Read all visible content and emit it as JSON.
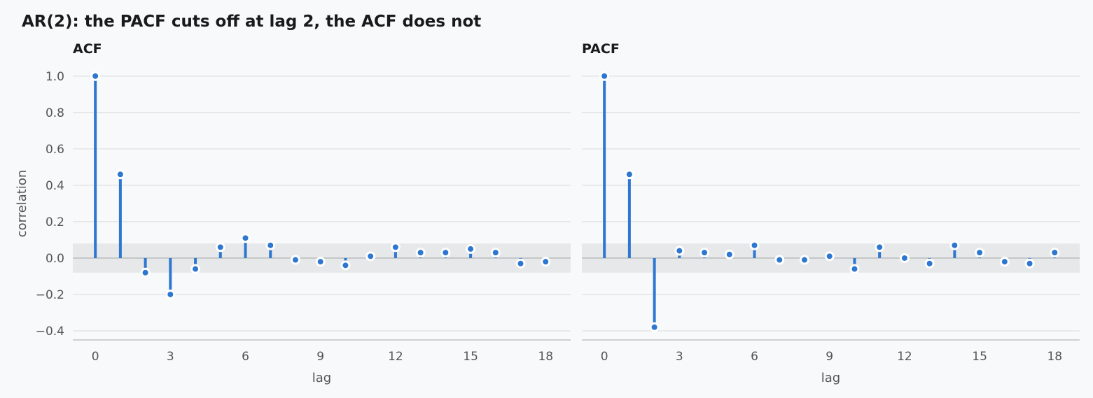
{
  "title": "AR(2): the PACF cuts off at lag 2, the ACF does not",
  "colors": {
    "stem": "#2e77d0",
    "band": "#e6e8e9",
    "grid": "#dfe2e2",
    "zero_line": "#b5b8b8",
    "background": "#f7f9fb"
  },
  "chart_data": [
    {
      "type": "stem",
      "title": "ACF",
      "xlabel": "lag",
      "ylabel": "correlation",
      "xlim": [
        -0.9,
        19
      ],
      "ylim": [
        -0.45,
        1.08
      ],
      "xticks": [
        0,
        3,
        6,
        9,
        12,
        15,
        18
      ],
      "yticks": [
        1.0,
        0.8,
        0.6,
        0.4,
        0.2,
        0.0,
        -0.2,
        -0.4
      ],
      "ytick_labels": [
        "1.0",
        "0.8",
        "0.6",
        "0.4",
        "0.2",
        "0.0",
        "−0.2",
        "−0.4"
      ],
      "confidence_band": [
        -0.08,
        0.08
      ],
      "grid": true,
      "x": [
        0,
        1,
        2,
        3,
        4,
        5,
        6,
        7,
        8,
        9,
        10,
        11,
        12,
        13,
        14,
        15,
        16,
        17,
        18
      ],
      "values": [
        1.0,
        0.46,
        -0.08,
        -0.2,
        -0.06,
        0.06,
        0.11,
        0.07,
        -0.01,
        -0.02,
        -0.04,
        0.01,
        0.06,
        0.03,
        0.03,
        0.05,
        0.03,
        -0.03,
        -0.02
      ]
    },
    {
      "type": "stem",
      "title": "PACF",
      "xlabel": "lag",
      "ylabel": "",
      "xlim": [
        -0.9,
        19
      ],
      "ylim": [
        -0.45,
        1.08
      ],
      "xticks": [
        0,
        3,
        6,
        9,
        12,
        15,
        18
      ],
      "yticks": [
        1.0,
        0.8,
        0.6,
        0.4,
        0.2,
        0.0,
        -0.2,
        -0.4
      ],
      "ytick_labels": [],
      "confidence_band": [
        -0.08,
        0.08
      ],
      "grid": true,
      "x": [
        0,
        1,
        2,
        3,
        4,
        5,
        6,
        7,
        8,
        9,
        10,
        11,
        12,
        13,
        14,
        15,
        16,
        17,
        18
      ],
      "values": [
        1.0,
        0.46,
        -0.38,
        0.04,
        0.03,
        0.02,
        0.07,
        -0.01,
        -0.01,
        0.01,
        -0.06,
        0.06,
        0.0,
        -0.03,
        0.07,
        0.03,
        -0.02,
        -0.03,
        0.03
      ]
    }
  ]
}
